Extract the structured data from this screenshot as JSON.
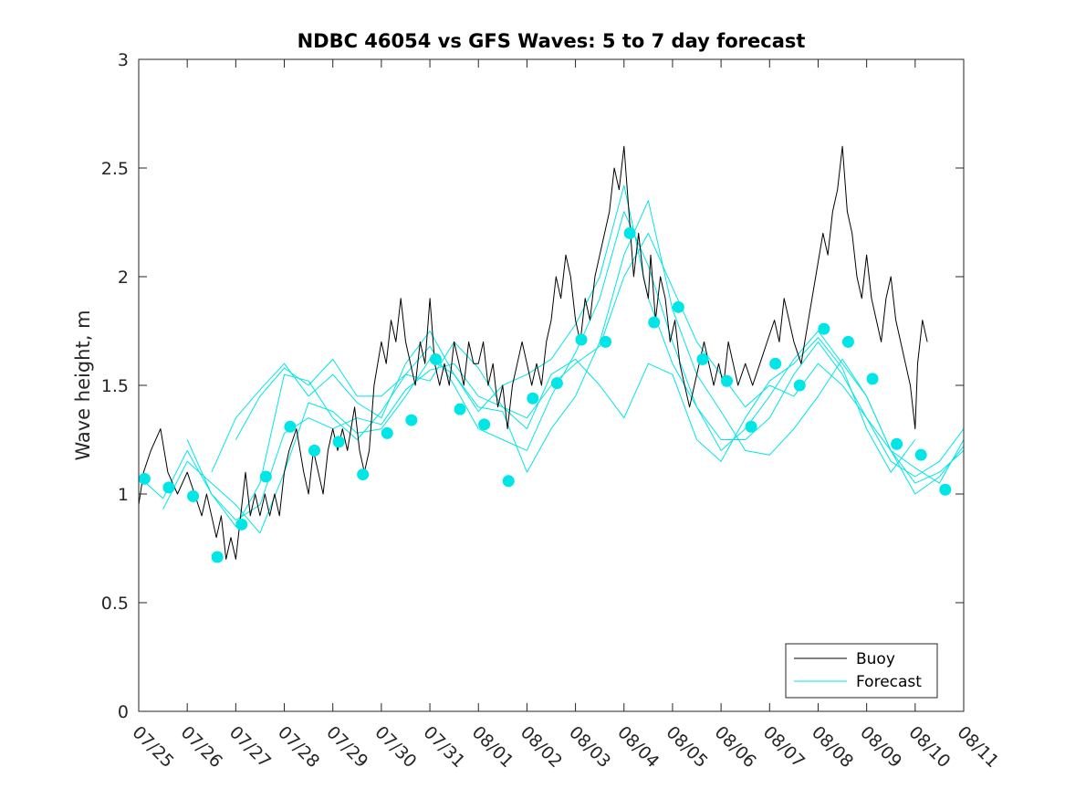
{
  "chart_data": {
    "type": "line",
    "title": "NDBC 46054 vs GFS Waves: 5 to 7 day forecast",
    "xlabel": "",
    "ylabel": "Wave height, m",
    "xlim": [
      0,
      17
    ],
    "ylim": [
      0,
      3
    ],
    "x_tick_labels": [
      "07/25",
      "07/26",
      "07/27",
      "07/28",
      "07/29",
      "07/30",
      "07/31",
      "08/01",
      "08/02",
      "08/03",
      "08/04",
      "08/05",
      "08/06",
      "08/07",
      "08/08",
      "08/09",
      "08/10",
      "08/11"
    ],
    "y_ticks": [
      0,
      0.5,
      1,
      1.5,
      2,
      2.5,
      3
    ],
    "y_tick_labels": [
      "0",
      "0.5",
      "1",
      "1.5",
      "2",
      "2.5",
      "3"
    ],
    "grid": false,
    "legend_position": "bottom-right",
    "colors": {
      "buoy": "#000000",
      "forecast": "#00e5e5",
      "axes": "#262626"
    },
    "series": [
      {
        "name": "Buoy",
        "style": "line",
        "x": [
          0,
          0.1,
          0.25,
          0.45,
          0.6,
          0.8,
          1.0,
          1.15,
          1.3,
          1.4,
          1.5,
          1.6,
          1.7,
          1.8,
          1.9,
          2.0,
          2.1,
          2.2,
          2.3,
          2.4,
          2.5,
          2.6,
          2.7,
          2.8,
          2.9,
          3.0,
          3.1,
          3.25,
          3.4,
          3.5,
          3.6,
          3.7,
          3.8,
          3.9,
          4.0,
          4.1,
          4.2,
          4.3,
          4.45,
          4.55,
          4.65,
          4.75,
          4.85,
          5.0,
          5.1,
          5.2,
          5.3,
          5.4,
          5.5,
          5.6,
          5.7,
          5.8,
          5.9,
          6.0,
          6.1,
          6.2,
          6.3,
          6.4,
          6.5,
          6.6,
          6.7,
          6.8,
          6.9,
          7.0,
          7.1,
          7.2,
          7.3,
          7.4,
          7.5,
          7.6,
          7.7,
          7.8,
          7.9,
          8.0,
          8.1,
          8.2,
          8.3,
          8.4,
          8.5,
          8.6,
          8.7,
          8.8,
          8.9,
          9.0,
          9.1,
          9.2,
          9.3,
          9.4,
          9.5,
          9.6,
          9.7,
          9.8,
          9.9,
          10.0,
          10.1,
          10.2,
          10.3,
          10.4,
          10.5,
          10.55,
          10.65,
          10.75,
          10.85,
          10.95,
          11.05,
          11.15,
          11.25,
          11.35,
          11.45,
          11.55,
          11.65,
          11.75,
          11.85,
          11.95,
          12.05,
          12.15,
          12.25,
          12.35,
          12.5,
          12.65,
          12.8,
          12.95,
          13.1,
          13.2,
          13.3,
          13.4,
          13.5,
          13.65,
          13.8,
          13.95,
          14.1,
          14.2,
          14.3,
          14.4,
          14.5,
          14.6,
          14.7,
          14.8,
          14.9,
          15.0,
          15.1,
          15.2,
          15.3,
          15.4,
          15.5,
          15.6,
          15.7,
          15.8,
          15.9,
          16.0,
          16.05,
          16.15,
          16.25
        ],
        "y": [
          0.95,
          1.1,
          1.2,
          1.3,
          1.1,
          1.0,
          1.1,
          1.0,
          0.9,
          1.0,
          0.9,
          0.8,
          0.9,
          0.7,
          0.8,
          0.7,
          0.9,
          1.1,
          0.9,
          1.0,
          0.9,
          1.0,
          0.9,
          1.0,
          0.9,
          1.1,
          1.2,
          1.3,
          1.1,
          1.0,
          1.2,
          1.1,
          1.0,
          1.2,
          1.3,
          1.2,
          1.3,
          1.2,
          1.4,
          1.2,
          1.1,
          1.2,
          1.5,
          1.7,
          1.6,
          1.8,
          1.7,
          1.9,
          1.7,
          1.6,
          1.5,
          1.7,
          1.6,
          1.9,
          1.6,
          1.5,
          1.6,
          1.5,
          1.7,
          1.6,
          1.5,
          1.7,
          1.6,
          1.6,
          1.7,
          1.5,
          1.6,
          1.4,
          1.5,
          1.3,
          1.5,
          1.6,
          1.7,
          1.6,
          1.5,
          1.6,
          1.5,
          1.7,
          1.8,
          2.0,
          1.9,
          2.1,
          2.0,
          1.8,
          1.7,
          1.9,
          1.8,
          2.0,
          2.1,
          2.2,
          2.3,
          2.5,
          2.4,
          2.6,
          2.3,
          2.0,
          2.2,
          2.0,
          1.9,
          2.1,
          1.8,
          2.0,
          1.9,
          1.7,
          1.8,
          1.6,
          1.5,
          1.4,
          1.5,
          1.6,
          1.7,
          1.6,
          1.5,
          1.6,
          1.5,
          1.7,
          1.6,
          1.5,
          1.6,
          1.5,
          1.6,
          1.7,
          1.8,
          1.7,
          1.9,
          1.8,
          1.7,
          1.6,
          1.8,
          2.0,
          2.2,
          2.1,
          2.3,
          2.4,
          2.6,
          2.3,
          2.2,
          2.0,
          1.9,
          2.1,
          1.9,
          1.8,
          1.7,
          1.9,
          2.0,
          1.8,
          1.7,
          1.6,
          1.5,
          1.3,
          1.6,
          1.8,
          1.7
        ]
      },
      {
        "name": "Forecast",
        "style": "line",
        "x": [
          0,
          0.5,
          1.0,
          1.5,
          2.0,
          2.5,
          3.0,
          3.5,
          4.0,
          4.5,
          5.0,
          5.5,
          6.0,
          6.5,
          7.0,
          7.5,
          8.0,
          8.5,
          9.0,
          9.5,
          10.0,
          10.5,
          11.0,
          11.5,
          12.0,
          12.5,
          13.0,
          13.5,
          14.0,
          14.5,
          15.0,
          15.5,
          16.0,
          16.5,
          17.0
        ],
        "y": [
          1.08,
          0.98,
          1.2,
          1.0,
          0.88,
          0.95,
          1.28,
          1.35,
          1.3,
          1.35,
          1.32,
          1.48,
          1.57,
          1.6,
          1.45,
          1.4,
          1.35,
          1.5,
          1.6,
          1.68,
          2.0,
          2.2,
          1.95,
          1.7,
          1.55,
          1.4,
          1.5,
          1.45,
          1.6,
          1.5,
          1.35,
          1.2,
          1.12,
          1.05,
          1.25
        ]
      },
      {
        "name": "",
        "style": "line",
        "x": [
          0.5,
          1.0,
          1.5,
          2.0,
          2.5,
          3.0,
          3.5,
          4.0,
          4.5,
          5.0,
          5.5,
          6.0,
          6.5,
          7.0,
          7.5,
          8.0,
          8.5,
          9.0,
          9.5,
          10.0,
          10.5,
          11.0,
          11.5,
          12.0,
          12.5,
          13.0,
          13.5,
          14.0,
          14.5,
          15.0,
          15.5,
          16.0,
          16.5,
          17.0
        ],
        "y": [
          0.93,
          1.15,
          1.05,
          0.95,
          0.82,
          1.1,
          1.42,
          1.38,
          1.28,
          1.3,
          1.45,
          1.62,
          1.55,
          1.4,
          1.38,
          1.1,
          1.3,
          1.45,
          1.7,
          2.1,
          2.35,
          1.85,
          1.55,
          1.38,
          1.2,
          1.18,
          1.3,
          1.45,
          1.62,
          1.45,
          1.2,
          1.05,
          1.1,
          1.2
        ]
      },
      {
        "name": "",
        "style": "line",
        "x": [
          1.0,
          1.5,
          2.0,
          2.5,
          3.0,
          3.5,
          4.0,
          4.5,
          5.0,
          5.5,
          6.0,
          6.5,
          7.0,
          7.5,
          8.0,
          8.5,
          9.0,
          9.5,
          10.0,
          10.5,
          11.0,
          11.5,
          12.0,
          12.5,
          13.0,
          13.5,
          14.0,
          14.5,
          15.0,
          15.5,
          16.0,
          16.5,
          17.0
        ],
        "y": [
          1.25,
          1.0,
          0.85,
          1.05,
          1.55,
          1.52,
          1.35,
          1.25,
          1.38,
          1.55,
          1.68,
          1.5,
          1.3,
          1.25,
          1.2,
          1.45,
          1.65,
          1.9,
          2.3,
          2.05,
          1.7,
          1.4,
          1.25,
          1.25,
          1.35,
          1.55,
          1.7,
          1.55,
          1.35,
          1.15,
          1.08,
          1.15,
          1.3
        ]
      },
      {
        "name": "",
        "style": "line",
        "x": [
          1.5,
          2.0,
          2.5,
          3.0,
          3.5,
          4.0,
          4.5,
          5.0,
          5.5,
          6.0,
          6.5,
          7.0,
          7.5,
          8.0,
          8.5,
          9.0,
          9.5,
          10.0,
          10.5,
          11.0,
          11.5,
          12.0,
          12.5,
          13.0,
          13.5,
          14.0,
          14.5,
          15.0,
          15.5,
          16.0,
          16.5,
          17.0
        ],
        "y": [
          1.1,
          1.35,
          1.48,
          1.6,
          1.45,
          1.55,
          1.42,
          1.35,
          1.6,
          1.75,
          1.55,
          1.38,
          1.5,
          1.55,
          1.62,
          1.78,
          2.0,
          2.42,
          1.9,
          1.6,
          1.4,
          1.2,
          1.3,
          1.45,
          1.62,
          1.75,
          1.6,
          1.45,
          1.2,
          1.0,
          1.08,
          1.22
        ]
      },
      {
        "name": "",
        "style": "line",
        "x": [
          2.0,
          2.5,
          3.0,
          3.5,
          4.0,
          4.5,
          5.0,
          5.5,
          6.0,
          6.5,
          7.0,
          7.5,
          8.0,
          8.5,
          9.0,
          9.5,
          10.0,
          10.5,
          11.0,
          11.5,
          12.0,
          12.5,
          13.0,
          13.5,
          14.0,
          14.5,
          15.0,
          15.5,
          16.0
        ],
        "y": [
          1.25,
          1.45,
          1.58,
          1.5,
          1.62,
          1.45,
          1.45,
          1.55,
          1.52,
          1.7,
          1.58,
          1.4,
          1.3,
          1.55,
          1.62,
          1.5,
          1.35,
          1.6,
          1.55,
          1.25,
          1.15,
          1.35,
          1.52,
          1.6,
          1.72,
          1.58,
          1.3,
          1.1,
          1.25
        ]
      },
      {
        "name": "",
        "style": "markers",
        "x": [
          0.12,
          0.62,
          1.12,
          1.62,
          2.12,
          2.62,
          3.12,
          3.62,
          4.12,
          4.62,
          5.12,
          5.62,
          6.12,
          6.62,
          7.12,
          7.62,
          8.12,
          8.62,
          9.12,
          9.62,
          10.12,
          10.62,
          11.12,
          11.62,
          12.12,
          12.62,
          13.12,
          13.62,
          14.12,
          14.62,
          15.12,
          15.62,
          16.12,
          16.62
        ],
        "y": [
          1.07,
          1.03,
          0.99,
          0.71,
          0.86,
          1.08,
          1.31,
          1.2,
          1.24,
          1.09,
          1.28,
          1.34,
          1.62,
          1.39,
          1.32,
          1.06,
          1.44,
          1.51,
          1.71,
          1.7,
          2.2,
          1.79,
          1.86,
          1.62,
          1.52,
          1.31,
          1.6,
          1.5,
          1.76,
          1.7,
          1.53,
          1.23,
          1.18,
          1.02
        ]
      }
    ]
  }
}
